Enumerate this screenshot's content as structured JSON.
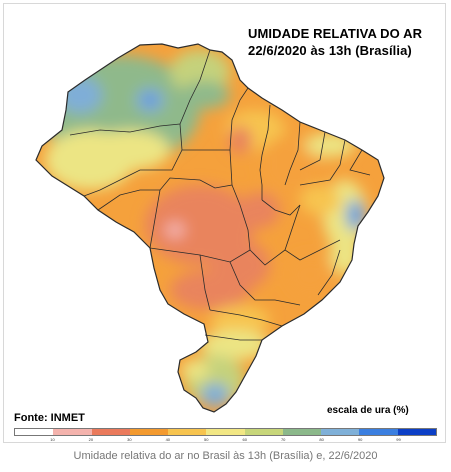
{
  "map": {
    "title_line1": "UMIDADE RELATIVA DO AR",
    "title_line2": "22/6/2020 às 13h (Brasília)",
    "source": "Fonte: INMET",
    "scale_label": "escala de ura (%)",
    "scale": {
      "ticks": [
        "10",
        "20",
        "30",
        "40",
        "50",
        "60",
        "70",
        "80",
        "90",
        "99"
      ],
      "colors": [
        "#ffffff",
        "#f4b3ad",
        "#ea7a5c",
        "#f39a2f",
        "#f7c44f",
        "#f2e784",
        "#c7d67a",
        "#8bb88a",
        "#7fb0d8",
        "#3b7fe0",
        "#0c3fc6"
      ]
    },
    "palette": {
      "outside": "#ffffff",
      "dry_red": "#e9845d",
      "orange": "#f5a13c",
      "yellow_orange": "#f7c44f",
      "yellow": "#ece584",
      "green_yellow": "#c5d27c",
      "green": "#8fb98b",
      "blue": "#7faed8",
      "dark_blue": "#3b7fe0",
      "state_line": "#2b2b2b"
    }
  },
  "caption": "Umidade relativa do ar no Brasil às 13h (Brasília) e, 22/6/2020"
}
